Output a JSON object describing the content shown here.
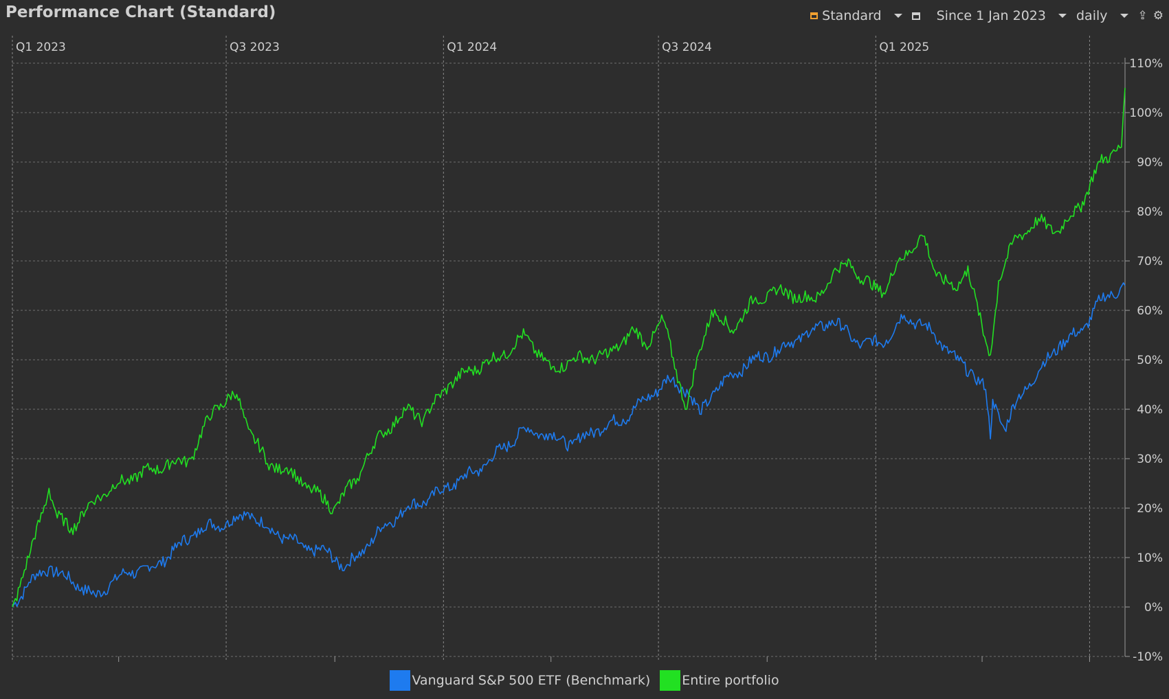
{
  "header": {
    "title": "Performance Chart (Standard)",
    "view_label": "Standard",
    "period_label": "Since 1 Jan 2023",
    "interval_label": "daily",
    "icons": [
      "view-icon",
      "calendar-icon",
      "export-icon",
      "settings-icon"
    ]
  },
  "chart_data": {
    "type": "line",
    "title": "",
    "xlabel": "",
    "ylabel": "",
    "x_range": [
      "2023-01-01",
      "2025-07-31"
    ],
    "ylim": [
      -10,
      110
    ],
    "y_unit": "%",
    "y_ticks": [
      "110%",
      "100%",
      "90%",
      "80%",
      "70%",
      "60%",
      "50%",
      "40%",
      "30%",
      "20%",
      "10%",
      "0%",
      "-10%"
    ],
    "x_ticks": [
      "Q1 2023",
      "Q3 2023",
      "Q1 2024",
      "Q3 2024",
      "Q1 2025"
    ],
    "grid": true,
    "legend_position": "bottom-center",
    "series": [
      {
        "name": "Vanguard S&P 500 ETF (Benchmark)",
        "color": "#1e7bef",
        "x": [
          "2023-01-01",
          "2023-01-15",
          "2023-02-01",
          "2023-02-15",
          "2023-03-01",
          "2023-03-13",
          "2023-03-25",
          "2023-04-10",
          "2023-05-01",
          "2023-05-20",
          "2023-06-10",
          "2023-07-01",
          "2023-07-20",
          "2023-08-05",
          "2023-08-20",
          "2023-09-05",
          "2023-09-25",
          "2023-10-10",
          "2023-10-27",
          "2023-11-10",
          "2023-12-01",
          "2023-12-20",
          "2024-01-10",
          "2024-02-01",
          "2024-02-20",
          "2024-03-10",
          "2024-03-28",
          "2024-04-19",
          "2024-05-10",
          "2024-06-01",
          "2024-06-20",
          "2024-07-10",
          "2024-07-25",
          "2024-08-05",
          "2024-08-15",
          "2024-09-01",
          "2024-09-20",
          "2024-10-10",
          "2024-11-01",
          "2024-11-10",
          "2024-11-25",
          "2024-12-10",
          "2024-12-20",
          "2025-01-10",
          "2025-01-25",
          "2025-02-10",
          "2025-02-20",
          "2025-03-10",
          "2025-03-25",
          "2025-04-04",
          "2025-04-08",
          "2025-04-10",
          "2025-04-20",
          "2025-05-01",
          "2025-05-20",
          "2025-06-05",
          "2025-06-25",
          "2025-07-10",
          "2025-07-31"
        ],
        "values": [
          0,
          5,
          8,
          6,
          4,
          2,
          5,
          7,
          8,
          12,
          16,
          17,
          19,
          16,
          14,
          12,
          11,
          8,
          12,
          16,
          20,
          22,
          25,
          28,
          32,
          36,
          35,
          33,
          36,
          38,
          42,
          46,
          44,
          39,
          43,
          47,
          50,
          52,
          55,
          56,
          58,
          55,
          53,
          54,
          59,
          57,
          55,
          50,
          47,
          44,
          34,
          42,
          36,
          42,
          48,
          53,
          56,
          62,
          65
        ]
      },
      {
        "name": "Entire portfolio",
        "color": "#22e022",
        "x": [
          "2023-01-01",
          "2023-01-15",
          "2023-02-01",
          "2023-02-08",
          "2023-02-20",
          "2023-03-13",
          "2023-04-01",
          "2023-05-01",
          "2023-06-01",
          "2023-06-20",
          "2023-07-10",
          "2023-07-20",
          "2023-08-05",
          "2023-08-20",
          "2023-09-10",
          "2023-09-30",
          "2023-10-20",
          "2023-10-27",
          "2023-11-10",
          "2023-12-01",
          "2023-12-15",
          "2024-01-05",
          "2024-01-25",
          "2024-02-20",
          "2024-03-10",
          "2024-04-01",
          "2024-04-19",
          "2024-05-20",
          "2024-06-10",
          "2024-06-20",
          "2024-07-05",
          "2024-07-16",
          "2024-07-25",
          "2024-08-05",
          "2024-08-15",
          "2024-09-01",
          "2024-09-20",
          "2024-10-10",
          "2024-11-10",
          "2024-11-25",
          "2024-12-10",
          "2024-12-20",
          "2025-01-10",
          "2025-01-20",
          "2025-02-10",
          "2025-02-20",
          "2025-03-10",
          "2025-03-20",
          "2025-04-02",
          "2025-04-08",
          "2025-04-15",
          "2025-04-30",
          "2025-05-20",
          "2025-06-05",
          "2025-06-25",
          "2025-07-10",
          "2025-07-20",
          "2025-07-28",
          "2025-07-31"
        ],
        "values": [
          0,
          10,
          24,
          18,
          16,
          22,
          25,
          28,
          30,
          40,
          43,
          36,
          29,
          28,
          24,
          20,
          26,
          30,
          35,
          40,
          38,
          45,
          48,
          51,
          55,
          48,
          50,
          51,
          56,
          53,
          58,
          48,
          40,
          52,
          60,
          56,
          62,
          64,
          62,
          67,
          70,
          66,
          64,
          70,
          75,
          68,
          64,
          69,
          55,
          51,
          66,
          75,
          78,
          76,
          82,
          90,
          92,
          93,
          105
        ]
      }
    ]
  }
}
